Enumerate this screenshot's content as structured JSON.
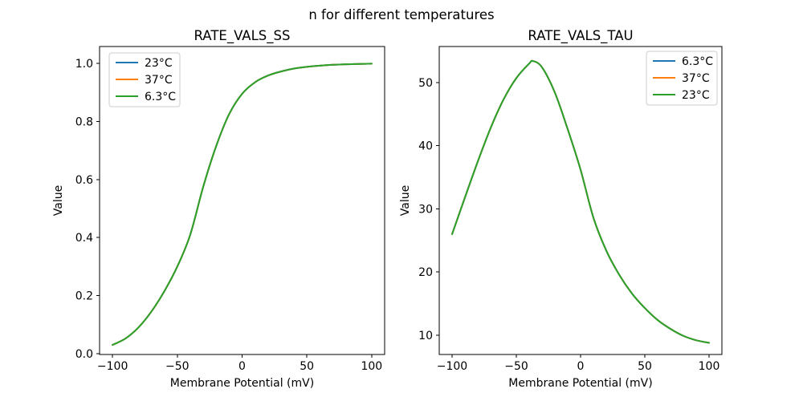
{
  "figure_title": "n for different temperatures",
  "background_color": "#ffffff",
  "text_color": "#000000",
  "chart_data": [
    {
      "type": "line",
      "title": "RATE_VALS_SS",
      "xlabel": "Membrane Potential (mV)",
      "ylabel": "Value",
      "xlim": [
        -110,
        110
      ],
      "ylim": [
        -0.003,
        1.058
      ],
      "xtick_values": [
        -100,
        -50,
        0,
        50,
        100
      ],
      "xtick_labels": [
        "−100",
        "−50",
        "0",
        "50",
        "100"
      ],
      "ytick_values": [
        0.0,
        0.2,
        0.4,
        0.6,
        0.8,
        1.0
      ],
      "ytick_labels": [
        "0.0",
        "0.2",
        "0.4",
        "0.6",
        "0.8",
        "1.0"
      ],
      "grid": false,
      "legend_position": "upper left",
      "overlap_note": "all three temperature curves coincide exactly; the last-drawn green curve is visible",
      "x": [
        -100,
        -90,
        -80,
        -70,
        -60,
        -50,
        -40,
        -30,
        -20,
        -10,
        0,
        10,
        20,
        30,
        40,
        50,
        60,
        70,
        80,
        90,
        100
      ],
      "series": [
        {
          "name": "23°C",
          "color": "#1f77b4",
          "values": [
            0.03,
            0.052,
            0.09,
            0.145,
            0.215,
            0.3,
            0.41,
            0.575,
            0.715,
            0.825,
            0.895,
            0.935,
            0.958,
            0.972,
            0.982,
            0.988,
            0.992,
            0.995,
            0.997,
            0.998,
            0.999
          ]
        },
        {
          "name": "37°C",
          "color": "#ff7f0e",
          "values": [
            0.03,
            0.052,
            0.09,
            0.145,
            0.215,
            0.3,
            0.41,
            0.575,
            0.715,
            0.825,
            0.895,
            0.935,
            0.958,
            0.972,
            0.982,
            0.988,
            0.992,
            0.995,
            0.997,
            0.998,
            0.999
          ]
        },
        {
          "name": "6.3°C",
          "color": "#2ca02c",
          "values": [
            0.03,
            0.052,
            0.09,
            0.145,
            0.215,
            0.3,
            0.41,
            0.575,
            0.715,
            0.825,
            0.895,
            0.935,
            0.958,
            0.972,
            0.982,
            0.988,
            0.992,
            0.995,
            0.997,
            0.998,
            0.999
          ]
        }
      ]
    },
    {
      "type": "line",
      "title": "RATE_VALS_TAU",
      "xlabel": "Membrane Potential (mV)",
      "ylabel": "Value",
      "xlim": [
        -110,
        110
      ],
      "ylim": [
        6.95,
        55.7
      ],
      "xtick_values": [
        -100,
        -50,
        0,
        50,
        100
      ],
      "xtick_labels": [
        "−100",
        "−50",
        "0",
        "50",
        "100"
      ],
      "ytick_values": [
        10,
        20,
        30,
        40,
        50
      ],
      "ytick_labels": [
        "10",
        "20",
        "30",
        "40",
        "50"
      ],
      "grid": false,
      "legend_position": "upper right",
      "overlap_note": "all three temperature curves coincide exactly; the last-drawn green curve is visible",
      "x": [
        -100,
        -90,
        -80,
        -70,
        -60,
        -50,
        -40,
        -37,
        -30,
        -20,
        -10,
        0,
        10,
        20,
        30,
        40,
        50,
        60,
        70,
        80,
        90,
        100
      ],
      "series": [
        {
          "name": "6.3°C",
          "color": "#1f77b4",
          "values": [
            26.0,
            31.8,
            37.5,
            42.8,
            47.3,
            50.7,
            53.0,
            53.4,
            52.4,
            48.4,
            42.6,
            36.2,
            28.6,
            23.4,
            19.6,
            16.6,
            14.3,
            12.4,
            11.0,
            9.9,
            9.2,
            8.8
          ]
        },
        {
          "name": "37°C",
          "color": "#ff7f0e",
          "values": [
            26.0,
            31.8,
            37.5,
            42.8,
            47.3,
            50.7,
            53.0,
            53.4,
            52.4,
            48.4,
            42.6,
            36.2,
            28.6,
            23.4,
            19.6,
            16.6,
            14.3,
            12.4,
            11.0,
            9.9,
            9.2,
            8.8
          ]
        },
        {
          "name": "23°C",
          "color": "#2ca02c",
          "values": [
            26.0,
            31.8,
            37.5,
            42.8,
            47.3,
            50.7,
            53.0,
            53.4,
            52.4,
            48.4,
            42.6,
            36.2,
            28.6,
            23.4,
            19.6,
            16.6,
            14.3,
            12.4,
            11.0,
            9.9,
            9.2,
            8.8
          ]
        }
      ]
    }
  ]
}
